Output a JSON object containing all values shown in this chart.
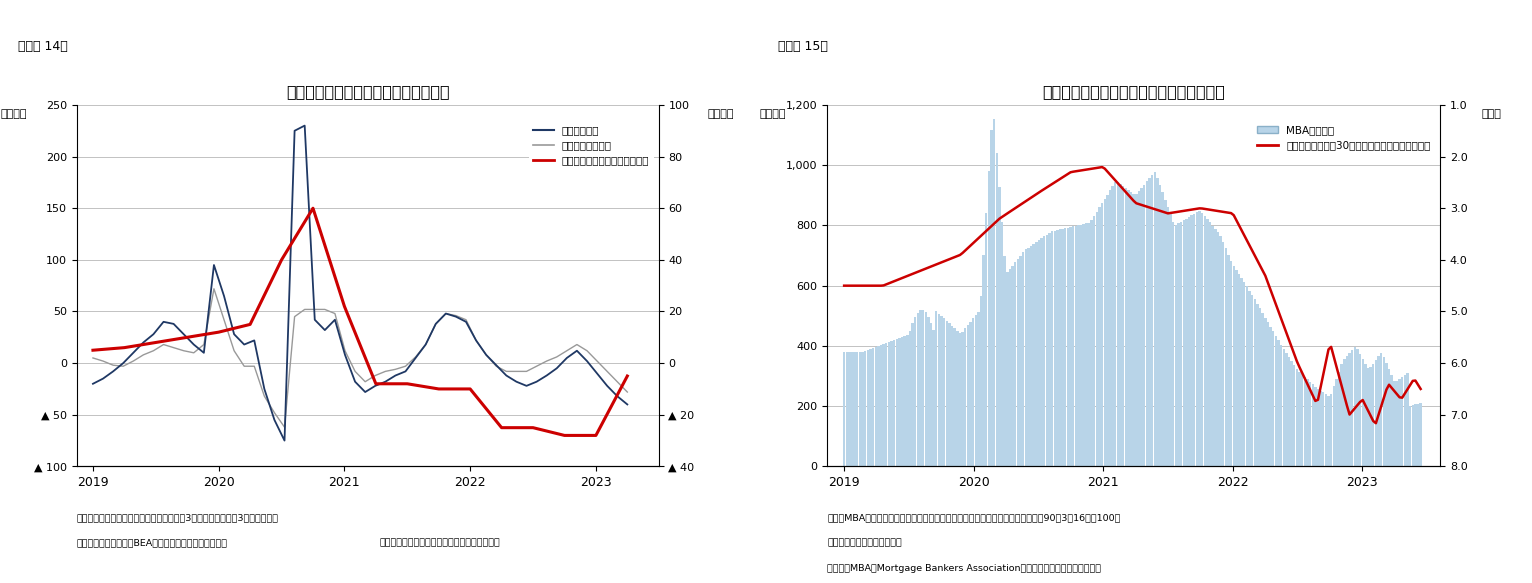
{
  "fig14": {
    "title": "住宅着工件数と実質住宅投資の伸び率",
    "label_top": "（図表 14）",
    "ylabel_left": "（年率）",
    "ylabel_right": "（年率）",
    "ylim_left": [
      -100,
      250
    ],
    "ylim_right": [
      -40,
      100
    ],
    "yticks_left": [
      -100,
      -50,
      0,
      50,
      100,
      150,
      200,
      250
    ],
    "yticks_right": [
      -40,
      -20,
      0,
      20,
      40,
      60,
      80,
      100
    ],
    "ytick_labels_left": [
      "▲ 100",
      "▲ 50",
      "0",
      "50",
      "100",
      "150",
      "200",
      "250"
    ],
    "ytick_labels_right": [
      "▲ 40",
      "▲ 20",
      "0",
      "20",
      "40",
      "60",
      "80",
      "100"
    ],
    "note1": "（注）住宅着工件数、住宅建築許可件数は3カ月移動平均後の3カ月前比年率",
    "note2": "（資料）センサス局、BEAよりニッセイ基礎研究所作成",
    "note3": "（着工・建築許可：月次、住宅投資：四半期）",
    "legend": [
      "住宅着工件数",
      "住宅建築許可件数",
      "住宅投資（実質伸び率、右軸）"
    ],
    "line1_color": "#1f3864",
    "line2_color": "#999999",
    "line3_color": "#cc0000",
    "xticks": [
      2019,
      2020,
      2021,
      2022,
      2023
    ]
  },
  "fig15": {
    "title": "住宅ローン金利および住宅ローン申請件数",
    "label_top": "（図表 15）",
    "ylabel_left": "（指数）",
    "ylabel_right": "（％）",
    "ylim_left": [
      0,
      1200
    ],
    "ylim_right": [
      1.0,
      8.0
    ],
    "yticks_left": [
      0,
      200,
      400,
      600,
      800,
      1000,
      1200
    ],
    "ytick_labels_left": [
      "0",
      "200",
      "400",
      "600",
      "800",
      "1,000",
      "1,200"
    ],
    "yticks_right": [
      1.0,
      2.0,
      3.0,
      4.0,
      5.0,
      6.0,
      7.0,
      8.0
    ],
    "ytick_labels_right": [
      "1.0",
      "2.0",
      "3.0",
      "4.0",
      "5.0",
      "6.0",
      "7.0",
      "8.0"
    ],
    "note1": "（注）MBA申請件数は住宅購入、借換えを含む住宅ローンの申請件数を指数化（90年3月16日＝100）",
    "note2": "　　したもの。季節調整済み",
    "note3": "（資料）MBA（Mortgage Bankers Association）よりニッセイ基礎研究所作成",
    "legend": [
      "MBA申請件数",
      "モーゲージローン30年固定金利（右軸、逆目盛）"
    ],
    "bar_color": "#b8d4e8",
    "line_color": "#cc0000",
    "xticks": [
      2019,
      2020,
      2021,
      2022,
      2023
    ]
  }
}
